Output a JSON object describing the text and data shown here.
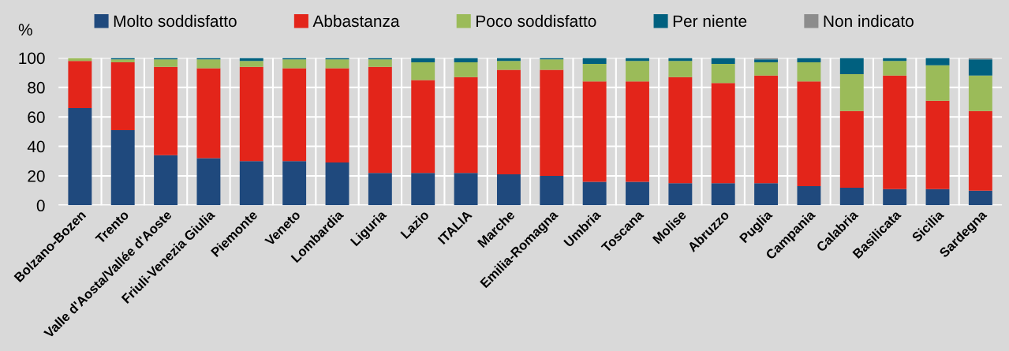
{
  "chart_data": {
    "type": "bar",
    "stacked": true,
    "ylabel": "%",
    "categories": [
      "Bolzano-Bozen",
      "Trento",
      "Valle d'Aosta/Vallée d'Aoste",
      "Friuli-Venezia Giulia",
      "Piemonte",
      "Veneto",
      "Lombardia",
      "Liguria",
      "Lazio",
      "ITALIA",
      "Marche",
      "Emilia-Romagna",
      "Umbria",
      "Toscana",
      "Molise",
      "Abruzzo",
      "Puglia",
      "Campania",
      "Calabria",
      "Basilicata",
      "Sicilia",
      "Sardegna"
    ],
    "series": [
      {
        "name": "Molto soddisfatto",
        "color": "#1f497d",
        "values": [
          66,
          51,
          34,
          32,
          30,
          30,
          29,
          22,
          22,
          22,
          21,
          20,
          16,
          16,
          15,
          15,
          15,
          13,
          12,
          11,
          11,
          10
        ]
      },
      {
        "name": "Abbastanza",
        "color": "#e3251a",
        "values": [
          32,
          46,
          60,
          61,
          64,
          63,
          64,
          72,
          63,
          65,
          71,
          72,
          68,
          68,
          72,
          68,
          73,
          71,
          52,
          77,
          60,
          54
        ]
      },
      {
        "name": "Poco soddisfatto",
        "color": "#9bbb59",
        "values": [
          2,
          2,
          5,
          6,
          4,
          6,
          6,
          5,
          12,
          10,
          6,
          7,
          12,
          14,
          11,
          13,
          9,
          13,
          25,
          10,
          24,
          24
        ]
      },
      {
        "name": "Per niente",
        "color": "#00607f",
        "values": [
          0,
          1,
          1,
          1,
          2,
          1,
          1,
          1,
          3,
          3,
          2,
          1,
          4,
          2,
          2,
          4,
          2,
          3,
          11,
          2,
          5,
          11
        ]
      },
      {
        "name": "Non indicato",
        "color": "#8c8c8c",
        "values": [
          0,
          0,
          0,
          0,
          0,
          0,
          0,
          0,
          0,
          0,
          0,
          0,
          0,
          0,
          0,
          0,
          1,
          0,
          0,
          0,
          0,
          1
        ]
      }
    ],
    "ylim": [
      0,
      100
    ],
    "yticks": [
      0,
      20,
      40,
      60,
      80,
      100
    ],
    "grid": true,
    "legend": "top"
  }
}
